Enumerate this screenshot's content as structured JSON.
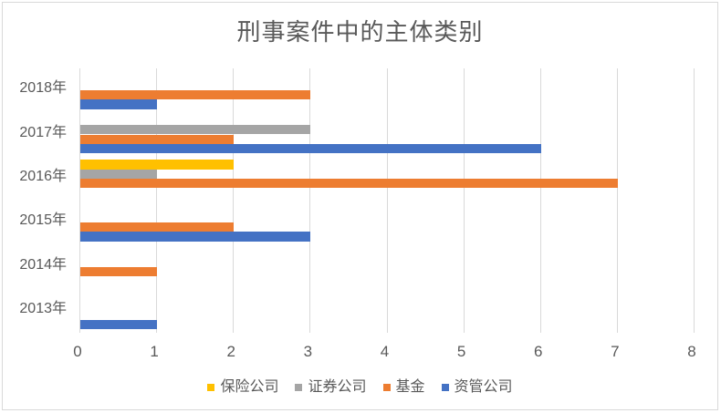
{
  "chart_data": {
    "type": "bar",
    "orientation": "horizontal",
    "title": "刑事案件中的主体类别",
    "categories": [
      "2018年",
      "2017年",
      "2016年",
      "2015年",
      "2014年",
      "2013年"
    ],
    "series": [
      {
        "id": "insurance-company",
        "name": "保险公司",
        "color": "#FFC000",
        "values": [
          0,
          0,
          2,
          0,
          0,
          0
        ]
      },
      {
        "id": "securities-company",
        "name": "证券公司",
        "color": "#A5A5A5",
        "values": [
          0,
          3,
          1,
          0,
          0,
          0
        ]
      },
      {
        "id": "fund",
        "name": "基金",
        "color": "#ED7D31",
        "values": [
          3,
          2,
          7,
          2,
          1,
          0
        ]
      },
      {
        "id": "asset-management",
        "name": "资管公司",
        "color": "#4472C4",
        "values": [
          1,
          6,
          0,
          3,
          0,
          1
        ]
      }
    ],
    "x_axis": {
      "min": 0,
      "max": 8,
      "step": 1,
      "tick_labels": [
        "0",
        "1",
        "2",
        "3",
        "4",
        "5",
        "6",
        "7",
        "8"
      ]
    },
    "legend_position": "bottom",
    "gridlines": "vertical-major",
    "colors": {
      "text": "#595959",
      "gridline": "#D9D9D9",
      "border": "#D9D9D9",
      "background": "#FFFFFF"
    }
  }
}
